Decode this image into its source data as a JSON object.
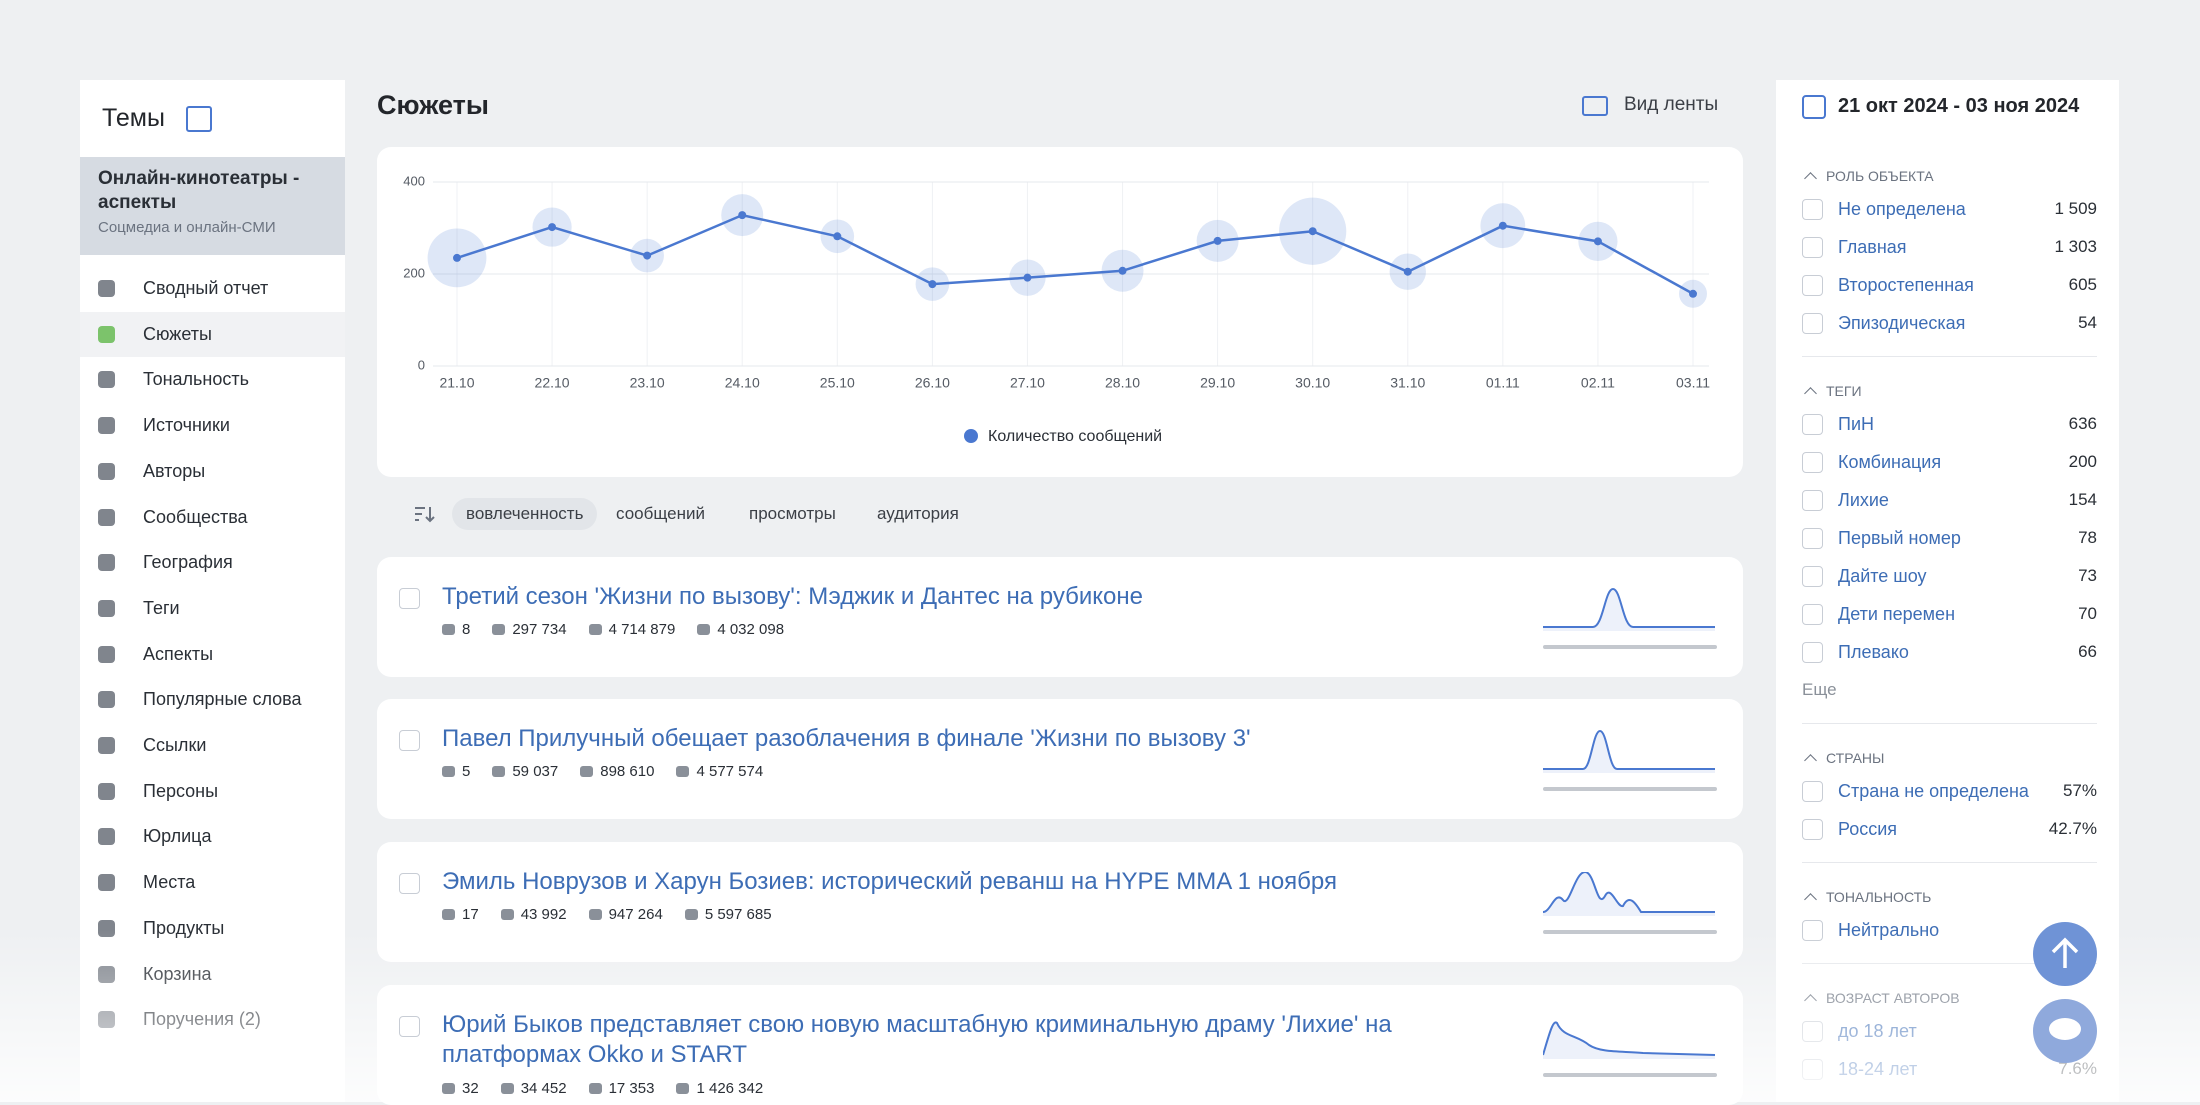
{
  "sidebar": {
    "title": "Темы",
    "topic": {
      "title": "Онлайн-кинотеатры - аспекты",
      "subtitle": "Соцмедиа и онлайн-СМИ"
    },
    "nav": [
      "Сводный отчет",
      "Сюжеты",
      "Тональность",
      "Источники",
      "Авторы",
      "Сообщества",
      "География",
      "Теги",
      "Аспекты",
      "Популярные слова",
      "Ссылки",
      "Персоны",
      "Юрлица",
      "Места",
      "Продукты",
      "Корзина",
      "Поручения (2)"
    ]
  },
  "main": {
    "title": "Сюжеты",
    "view_toggle": "Вид ленты",
    "sort_options": [
      "вовлеченность",
      "сообщений",
      "просмотры",
      "аудитория"
    ],
    "stories": [
      {
        "title": "Третий сезон 'Жизни по вызову': Мэджик и Дантес на рубиконе",
        "stats": [
          "8",
          "297 734",
          "4 714 879",
          "4 032 098"
        ]
      },
      {
        "title": "Павел Прилучный обещает разоблачения в финале 'Жизни по вызову 3'",
        "stats": [
          "5",
          "59 037",
          "898 610",
          "4 577 574"
        ]
      },
      {
        "title": "Эмиль Новрузов и Харун Бозиев: исторический реванш на HYPE MMA 1 ноября",
        "stats": [
          "17",
          "43 992",
          "947 264",
          "5 597 685"
        ]
      },
      {
        "title": "Юрий Быков представляет свою новую масштабную криминальную драму 'Лихие' на платформах Okko и START",
        "stats": [
          "32",
          "34 452",
          "17 353",
          "1 426 342"
        ]
      }
    ]
  },
  "chart_data": {
    "type": "line",
    "categories": [
      "21.10",
      "22.10",
      "23.10",
      "24.10",
      "25.10",
      "26.10",
      "27.10",
      "28.10",
      "29.10",
      "30.10",
      "31.10",
      "01.11",
      "02.11",
      "03.11"
    ],
    "series": [
      {
        "name": "Количество сообщений",
        "color": "#4a78d0",
        "values": [
          235,
          302,
          240,
          328,
          282,
          178,
          192,
          207,
          272,
          293,
          205,
          305,
          271,
          157
        ],
        "sizes": [
          21,
          14,
          12,
          15,
          12,
          12,
          13,
          15,
          15,
          24,
          13,
          16,
          14,
          10
        ]
      }
    ],
    "ylim": [
      0,
      400
    ],
    "yticks": [
      0,
      200,
      400
    ],
    "grid": true,
    "legend": "bottom"
  },
  "filters": {
    "date_range": "21 окт 2024 - 03 ноя 2024",
    "groups": [
      {
        "title": "РОЛЬ ОБЪЕКТА",
        "items": [
          {
            "label": "Не определена",
            "count": "1 509"
          },
          {
            "label": "Главная",
            "count": "1 303"
          },
          {
            "label": "Второстепенная",
            "count": "605"
          },
          {
            "label": "Эпизодическая",
            "count": "54"
          }
        ]
      },
      {
        "title": "ТЕГИ",
        "items": [
          {
            "label": "ПиН",
            "count": "636"
          },
          {
            "label": "Комбинация",
            "count": "200"
          },
          {
            "label": "Лихие",
            "count": "154"
          },
          {
            "label": "Первый номер",
            "count": "78"
          },
          {
            "label": "Дайте шоу",
            "count": "73"
          },
          {
            "label": "Дети перемен",
            "count": "70"
          },
          {
            "label": "Плевако",
            "count": "66"
          }
        ],
        "more": "Еще"
      },
      {
        "title": "СТРАНЫ",
        "items": [
          {
            "label": "Страна не определена",
            "count": "57%"
          },
          {
            "label": "Россия",
            "count": "42.7%"
          }
        ]
      },
      {
        "title": "ТОНАЛЬНОСТЬ",
        "items": [
          {
            "label": "Нейтрально"
          }
        ]
      },
      {
        "title": "ВОЗРАСТ АВТОРОВ",
        "items": [
          {
            "label": "до 18 лет"
          },
          {
            "label": "18-24 лет",
            "count": "7.6%"
          }
        ]
      }
    ]
  }
}
